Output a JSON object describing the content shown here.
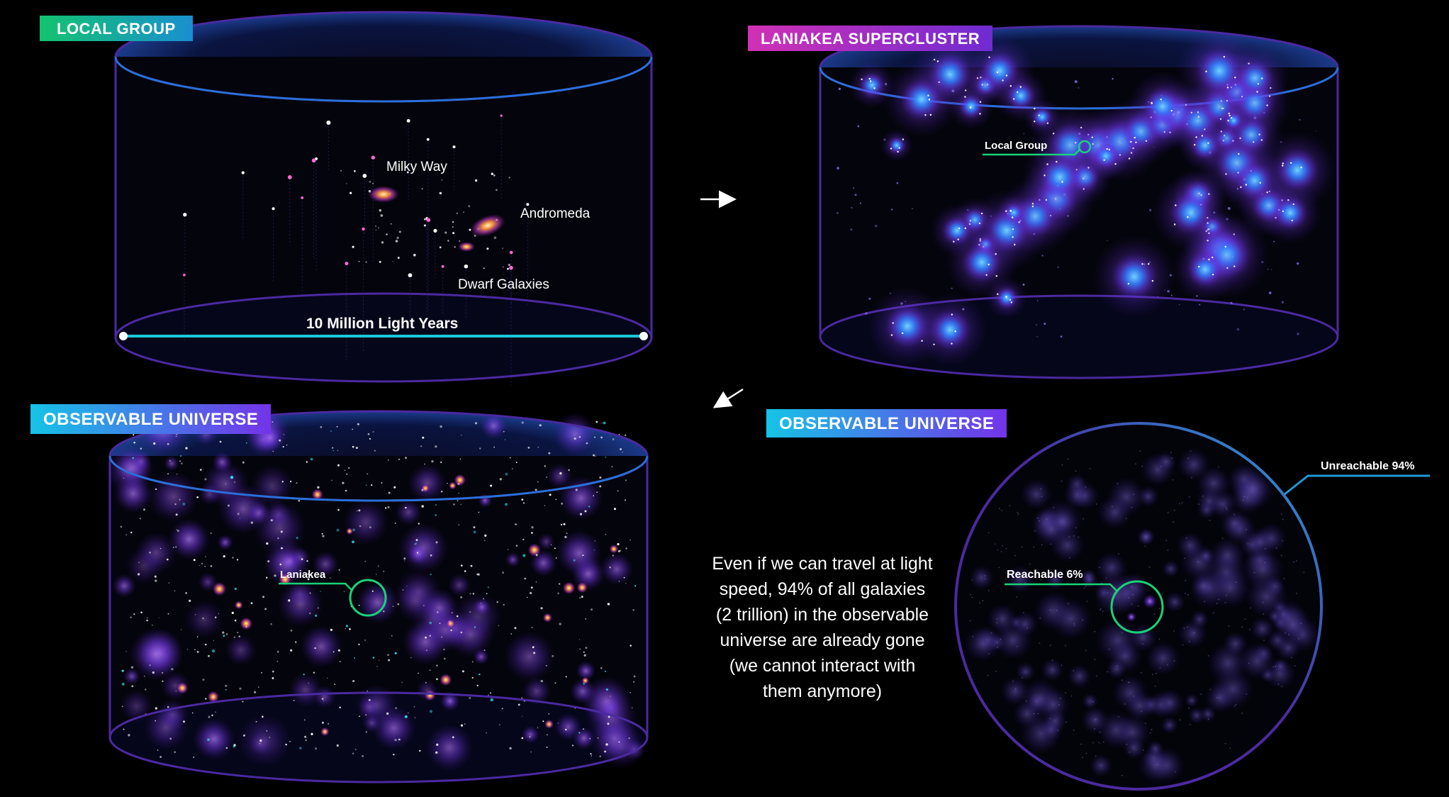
{
  "panels": {
    "local_group": {
      "title": "LOCAL GROUP",
      "labels": {
        "milky_way": "Milky Way",
        "andromeda": "Andromeda",
        "dwarf_galaxies": "Dwarf Galaxies",
        "scale": "10 Million Light Years"
      }
    },
    "laniakea": {
      "title": "LANIAKEA SUPERCLUSTER",
      "labels": {
        "local_group": "Local Group"
      }
    },
    "observable_cylinder": {
      "title": "OBSERVABLE UNIVERSE",
      "labels": {
        "laniakea": "Laniakea"
      }
    },
    "observable_sphere": {
      "title": "OBSERVABLE UNIVERSE",
      "labels": {
        "reachable": "Reachable 6%",
        "unreachable": "Unreachable 94%"
      }
    }
  },
  "caption": "Even if we can travel at light speed, 94% of all galaxies (2 trillion) in the observable universe are already gone (we cannot interact with them anymore)",
  "colors": {
    "background": "#000000",
    "cylinder_outline": "#5a2fb0",
    "cylinder_top_glow": "#2b6fd6",
    "cluster_glow": "#7a3cf5",
    "cluster_core": "#3fb7ff",
    "scale_bar": "#19c8d8",
    "callout_green": "#18d37a",
    "callout_blue": "#1e9ad6",
    "galaxy_orange": "#ff9a3c",
    "galaxy_magenta": "#d244c8"
  },
  "icons": [
    "arrow-right-icon",
    "arrow-down-left-icon"
  ]
}
